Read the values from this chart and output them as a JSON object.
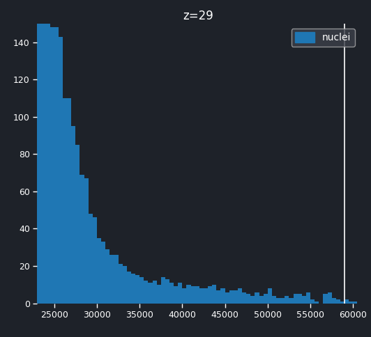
{
  "title": "z=29",
  "legend_label": "nuclei",
  "bar_color": "#1f77b4",
  "background_color": "#1e2229",
  "text_color": "#ffffff",
  "tick_color": "#ffffff",
  "legend_bg_color": "#3c4049",
  "legend_edge_color": "#aaaaaa",
  "vline_x": 59000,
  "vline_color": "#ffffff",
  "xlim": [
    23000,
    60800
  ],
  "ylim": [
    0,
    150
  ],
  "xticks": [
    25000,
    30000,
    35000,
    40000,
    45000,
    50000,
    55000,
    60000
  ],
  "yticks": [
    0,
    20,
    40,
    60,
    80,
    100,
    120,
    140
  ],
  "bin_edges": [
    23000,
    23500,
    24000,
    24500,
    25000,
    25500,
    26000,
    26500,
    27000,
    27500,
    28000,
    28500,
    29000,
    29500,
    30000,
    30500,
    31000,
    31500,
    32000,
    32500,
    33000,
    33500,
    34000,
    34500,
    35000,
    35500,
    36000,
    36500,
    37000,
    37500,
    38000,
    38500,
    39000,
    39500,
    40000,
    40500,
    41000,
    41500,
    42000,
    42500,
    43000,
    43500,
    44000,
    44500,
    45000,
    45500,
    46000,
    46500,
    47000,
    47500,
    48000,
    48500,
    49000,
    49500,
    50000,
    50500,
    51000,
    51500,
    52000,
    52500,
    53000,
    53500,
    54000,
    54500,
    55000,
    55500,
    56000,
    56500,
    57000,
    57500,
    58000,
    58500,
    59000,
    59500,
    60000
  ],
  "bin_counts": [
    150,
    150,
    150,
    148,
    148,
    143,
    110,
    110,
    95,
    85,
    69,
    67,
    48,
    46,
    35,
    33,
    29,
    26,
    26,
    21,
    20,
    17,
    16,
    15,
    14,
    12,
    11,
    12,
    10,
    14,
    13,
    11,
    9,
    11,
    8,
    10,
    9,
    9,
    8,
    8,
    9,
    10,
    7,
    8,
    6,
    7,
    7,
    8,
    6,
    5,
    4,
    6,
    4,
    5,
    8,
    4,
    3,
    3,
    4,
    3,
    5,
    5,
    4,
    6,
    2,
    1,
    0,
    5,
    6,
    3,
    2,
    1,
    2,
    1,
    1
  ],
  "title_fontsize": 12,
  "tick_fontsize": 9
}
